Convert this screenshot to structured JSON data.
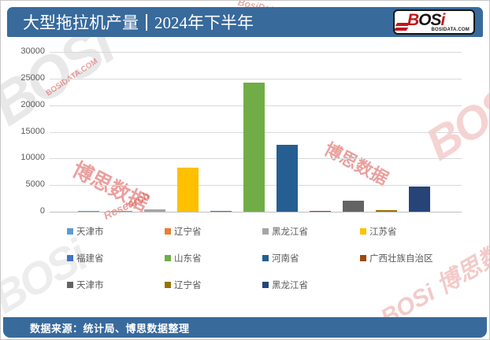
{
  "header": {
    "title_main": "大型拖拉机产量",
    "title_period": "2024年下半年",
    "logo_text_b": "B",
    "logo_text_os": "OS",
    "logo_text_i": "i",
    "logo_sub": "BOSIDATA.COM"
  },
  "chart_data": {
    "type": "bar",
    "title": "大型拖拉机产量 | 2024年下半年",
    "xlabel": "",
    "ylabel": "",
    "ylim": [
      0,
      30000
    ],
    "yticks": [
      0,
      5000,
      10000,
      15000,
      20000,
      25000,
      30000
    ],
    "grid": true,
    "legend_position": "bottom",
    "series": [
      {
        "name": "天津市",
        "value": 150,
        "color": "#5B9BD5"
      },
      {
        "name": "辽宁省",
        "value": 200,
        "color": "#ED7D31"
      },
      {
        "name": "黑龙江省",
        "value": 500,
        "color": "#A5A5A5"
      },
      {
        "name": "江苏省",
        "value": 8300,
        "color": "#FFC000"
      },
      {
        "name": "福建省",
        "value": 150,
        "color": "#4472C4"
      },
      {
        "name": "山东省",
        "value": 24300,
        "color": "#70AD47"
      },
      {
        "name": "河南省",
        "value": 12500,
        "color": "#255E91"
      },
      {
        "name": "广西壮族自治区",
        "value": 100,
        "color": "#9E480E"
      },
      {
        "name": "天津市",
        "value": 2100,
        "color": "#636363"
      },
      {
        "name": "辽宁省",
        "value": 250,
        "color": "#997300"
      },
      {
        "name": "黑龙江省",
        "value": 4800,
        "color": "#264478"
      }
    ]
  },
  "footer": {
    "source_text": "数据来源：统计局、博思数据整理"
  },
  "watermarks": [
    "BOSi",
    "博思数据",
    "Research",
    "BosiData Research",
    "博思数据",
    "BOSi",
    "BOSi 博思数据",
    "BOSi",
    "BOSIDATA.COM"
  ],
  "colors": {
    "band_blue": "#386a9c",
    "grid": "#d9d9d9",
    "axis_text": "#595959",
    "logo_red": "#c4161c"
  }
}
